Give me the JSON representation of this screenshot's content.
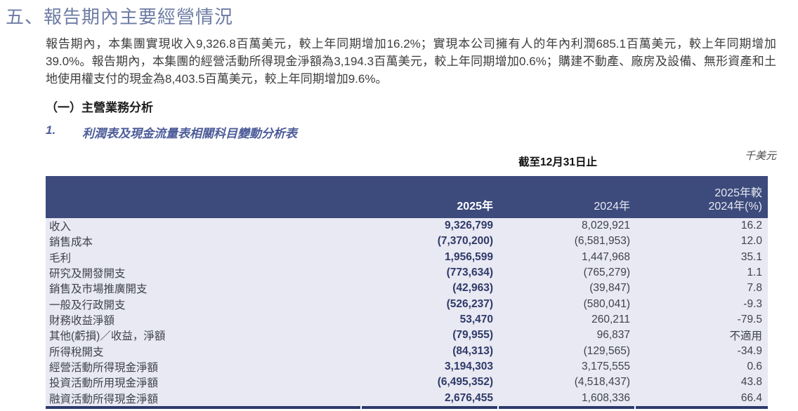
{
  "page": {
    "title": "五、報告期內主要經營情況",
    "intro_paragraph": "報告期內，本集團實現收入9,326.8百萬美元，較上年同期增加16.2%；實現本公司擁有人的年內利潤685.1百萬美元，較上年同期增加39.0%。報告期內，本集團的經營活動所得現金淨額為3,194.3百萬美元，較上年同期增加0.6%；購建不動產、廠房及設備、無形資產和土地使用權支付的現金為8,403.5百萬美元，較上年同期增加9.6%。",
    "section_heading": "（一）主營業務分析",
    "subsection_number": "1.",
    "subsection_title": "利潤表及現金流量表相關科目變動分析表",
    "unit_label": "千美元",
    "period_label": "截至12月31日止"
  },
  "table": {
    "header": {
      "col_2025": "2025年",
      "col_2024": "2024年",
      "col_change_line1": "2025年較",
      "col_change_line2": "2024年(%)"
    },
    "rows": [
      {
        "label": "收入",
        "y2025": "9,326,799",
        "y2024": "8,029,921",
        "change": "16.2"
      },
      {
        "label": "銷售成本",
        "y2025": "(7,370,200)",
        "y2024": "(6,581,953)",
        "change": "12.0"
      },
      {
        "label": "毛利",
        "y2025": "1,956,599",
        "y2024": "1,447,968",
        "change": "35.1"
      },
      {
        "label": "研究及開發開支",
        "y2025": "(773,634)",
        "y2024": "(765,279)",
        "change": "1.1"
      },
      {
        "label": "銷售及市場推廣開支",
        "y2025": "(42,963)",
        "y2024": "(39,847)",
        "change": "7.8"
      },
      {
        "label": "一般及行政開支",
        "y2025": "(526,237)",
        "y2024": "(580,041)",
        "change": "-9.3"
      },
      {
        "label": "財務收益淨額",
        "y2025": "53,470",
        "y2024": "260,211",
        "change": "-79.5"
      },
      {
        "label": "其他(虧損)／收益，淨額",
        "y2025": "(79,955)",
        "y2024": "96,837",
        "change": "不適用"
      },
      {
        "label": "所得稅開支",
        "y2025": "(84,313)",
        "y2024": "(129,565)",
        "change": "-34.9"
      },
      {
        "label": "經營活動所得現金淨額",
        "y2025": "3,194,303",
        "y2024": "3,175,555",
        "change": "0.6"
      },
      {
        "label": "投資活動所用現金淨額",
        "y2025": "(6,495,352)",
        "y2024": "(4,518,437)",
        "change": "43.8"
      },
      {
        "label": "融資活動所得現金淨額",
        "y2025": "2,676,455",
        "y2024": "1,608,336",
        "change": "66.4"
      }
    ]
  },
  "colors": {
    "title_text": "#6e7ca5",
    "subsection_text": "#4d5c99",
    "table_header_bg": "#3c4a7c",
    "table_body_bg": "#e9e9f3",
    "value_2025_text": "#2e3a68",
    "bottom_rule": "#2c3a6b"
  }
}
